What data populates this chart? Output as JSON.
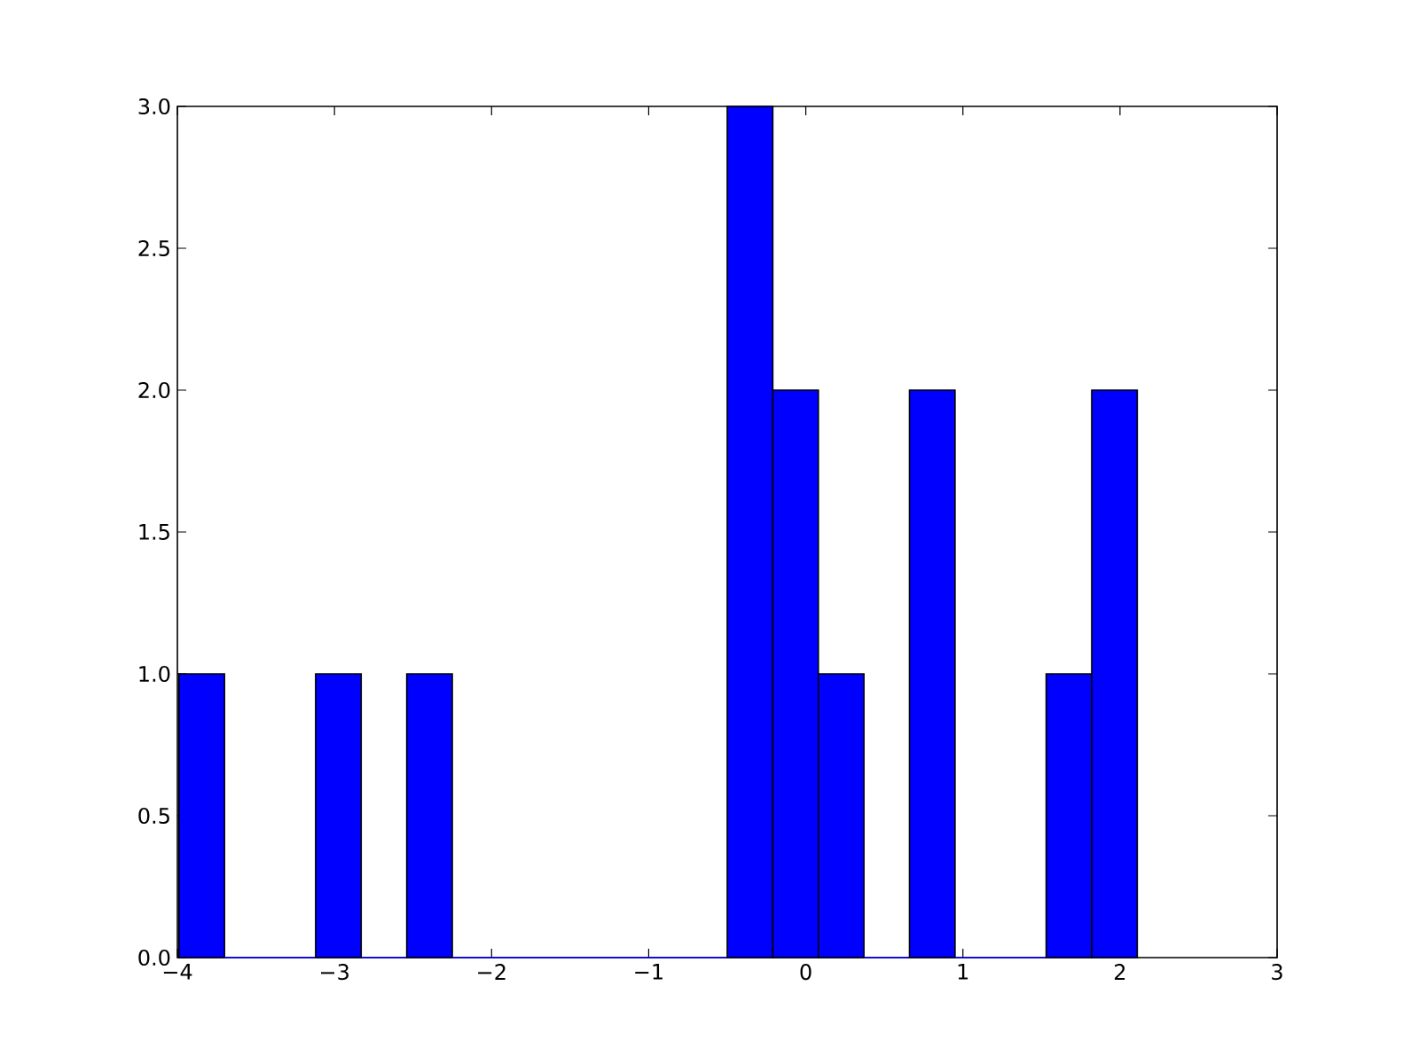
{
  "chart_data": {
    "type": "histogram",
    "bins": [
      -3.99,
      -3.7,
      -3.12,
      -2.83,
      -2.54,
      -2.25,
      -0.5,
      -0.21,
      0.08,
      0.37,
      0.66,
      0.95,
      1.53,
      1.82,
      2.11
    ],
    "values": [
      1,
      0,
      1,
      0,
      1,
      0,
      3,
      2,
      1,
      0,
      2,
      0,
      1,
      2
    ],
    "color": "#0000ff",
    "xlim": [
      -4,
      3
    ],
    "xticks": [
      {
        "value": -4,
        "label": "−4"
      },
      {
        "value": -3,
        "label": "−3"
      },
      {
        "value": -2,
        "label": "−2"
      },
      {
        "value": -1,
        "label": "−1"
      },
      {
        "value": 0,
        "label": "0"
      },
      {
        "value": 1,
        "label": "1"
      },
      {
        "value": 2,
        "label": "2"
      },
      {
        "value": 3,
        "label": "3"
      }
    ],
    "ylim": [
      0,
      3
    ],
    "yticks": [
      {
        "value": 0,
        "label": "0.0"
      },
      {
        "value": 0.5,
        "label": "0.5"
      },
      {
        "value": 1,
        "label": "1.0"
      },
      {
        "value": 1.5,
        "label": "1.5"
      },
      {
        "value": 2,
        "label": "2.0"
      },
      {
        "value": 2.5,
        "label": "2.5"
      },
      {
        "value": 3,
        "label": "3.0"
      }
    ]
  }
}
